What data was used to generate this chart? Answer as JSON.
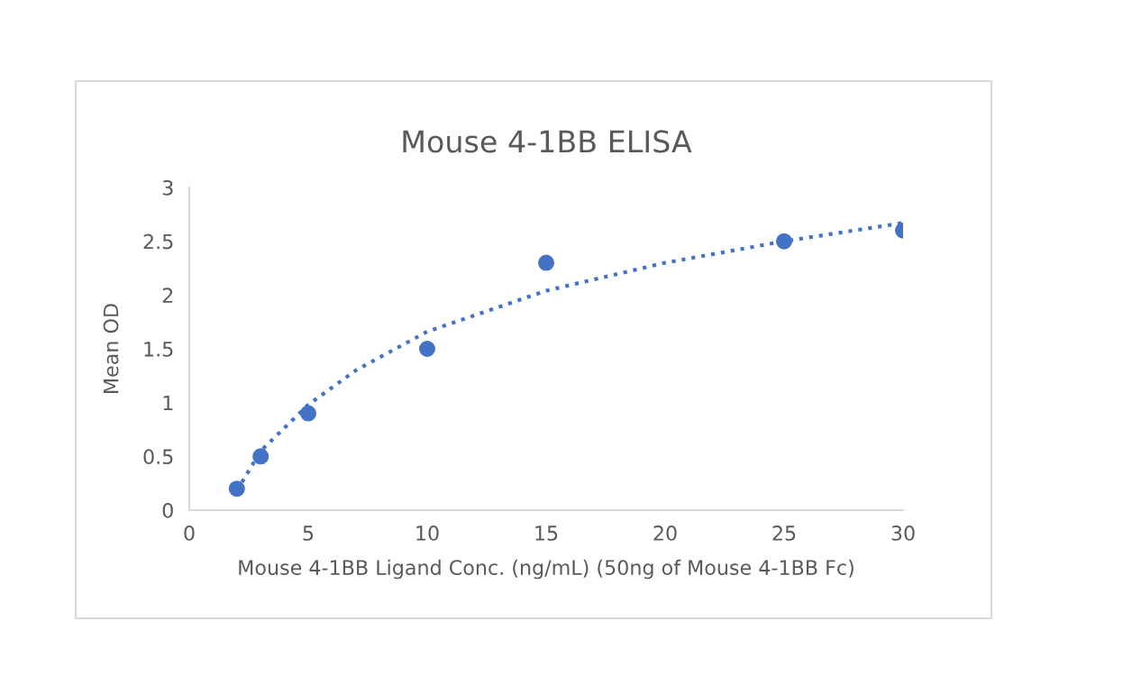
{
  "chart_data": {
    "type": "scatter",
    "title": "Mouse 4-1BB ELISA",
    "xlabel": "Mouse 4-1BB Ligand Conc. (ng/mL) (50ng of Mouse 4-1BB Fc)",
    "ylabel": "Mean OD",
    "x": [
      2,
      3,
      5,
      10,
      15,
      25,
      30
    ],
    "series": [
      {
        "color": "#4472c4",
        "values": [
          0.2,
          0.5,
          0.9,
          1.5,
          2.3,
          2.5,
          2.6
        ],
        "marker": "circle"
      },
      {
        "type": "line",
        "color": "#4472c4",
        "line_style": "dotted",
        "marker": "none",
        "x": [
          2,
          3,
          5,
          7,
          10,
          15,
          20,
          25,
          30
        ],
        "values": [
          0.18,
          0.55,
          0.98,
          1.3,
          1.66,
          2.04,
          2.3,
          2.5,
          2.67
        ]
      }
    ],
    "xlim": [
      0,
      30
    ],
    "xticks": [
      0,
      5,
      10,
      15,
      20,
      25,
      30
    ],
    "ylim": [
      0,
      3
    ],
    "yticks": [
      0,
      0.5,
      1,
      1.5,
      2,
      2.5,
      3
    ],
    "grid": false,
    "legend": false
  }
}
